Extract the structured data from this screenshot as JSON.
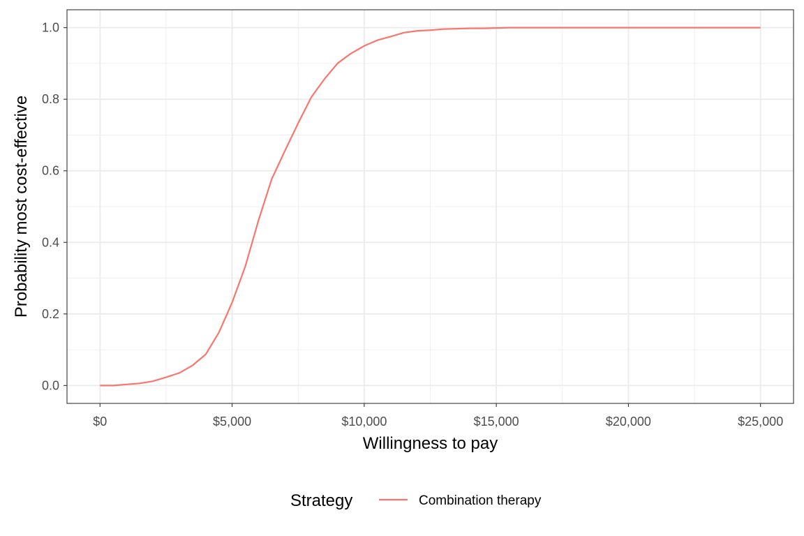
{
  "chart_data": {
    "type": "line",
    "xlabel": "Willingness to pay",
    "ylabel": "Probability most cost-effective",
    "xlim": [
      -1250,
      26250
    ],
    "ylim": [
      -0.05,
      1.05
    ],
    "x_ticks": [
      0,
      5000,
      10000,
      15000,
      20000,
      25000
    ],
    "x_tick_labels": [
      "$0",
      "$5,000",
      "$10,000",
      "$15,000",
      "$20,000",
      "$25,000"
    ],
    "y_ticks": [
      0,
      0.2,
      0.4,
      0.6,
      0.8,
      1.0
    ],
    "y_tick_labels": [
      "0.0",
      "0.2",
      "0.4",
      "0.6",
      "0.8",
      "1.0"
    ],
    "grid": true,
    "legend": {
      "title": "Strategy",
      "position": "bottom"
    },
    "series": [
      {
        "name": "Combination therapy",
        "color": "#F8766D",
        "x": [
          0,
          500,
          1000,
          1500,
          2000,
          2500,
          3000,
          3500,
          4000,
          4500,
          5000,
          5500,
          6000,
          6500,
          7000,
          7500,
          8000,
          8500,
          9000,
          9500,
          10000,
          10500,
          11000,
          11500,
          12000,
          12500,
          13000,
          13500,
          14000,
          14500,
          15000,
          15500,
          16000,
          16500,
          17000,
          17500,
          18000,
          18500,
          19000,
          19500,
          20000,
          20500,
          21000,
          21500,
          22000,
          22500,
          23000,
          23500,
          24000,
          24500,
          25000
        ],
        "y": [
          0.0,
          0.0,
          0.003,
          0.006,
          0.012,
          0.023,
          0.035,
          0.056,
          0.087,
          0.148,
          0.232,
          0.333,
          0.462,
          0.577,
          0.656,
          0.733,
          0.806,
          0.857,
          0.901,
          0.928,
          0.949,
          0.965,
          0.975,
          0.986,
          0.991,
          0.993,
          0.996,
          0.997,
          0.998,
          0.998,
          0.999,
          1.0,
          1.0,
          1.0,
          1.0,
          1.0,
          1.0,
          1.0,
          1.0,
          1.0,
          1.0,
          1.0,
          1.0,
          1.0,
          1.0,
          1.0,
          1.0,
          1.0,
          1.0,
          1.0,
          1.0
        ]
      }
    ]
  }
}
